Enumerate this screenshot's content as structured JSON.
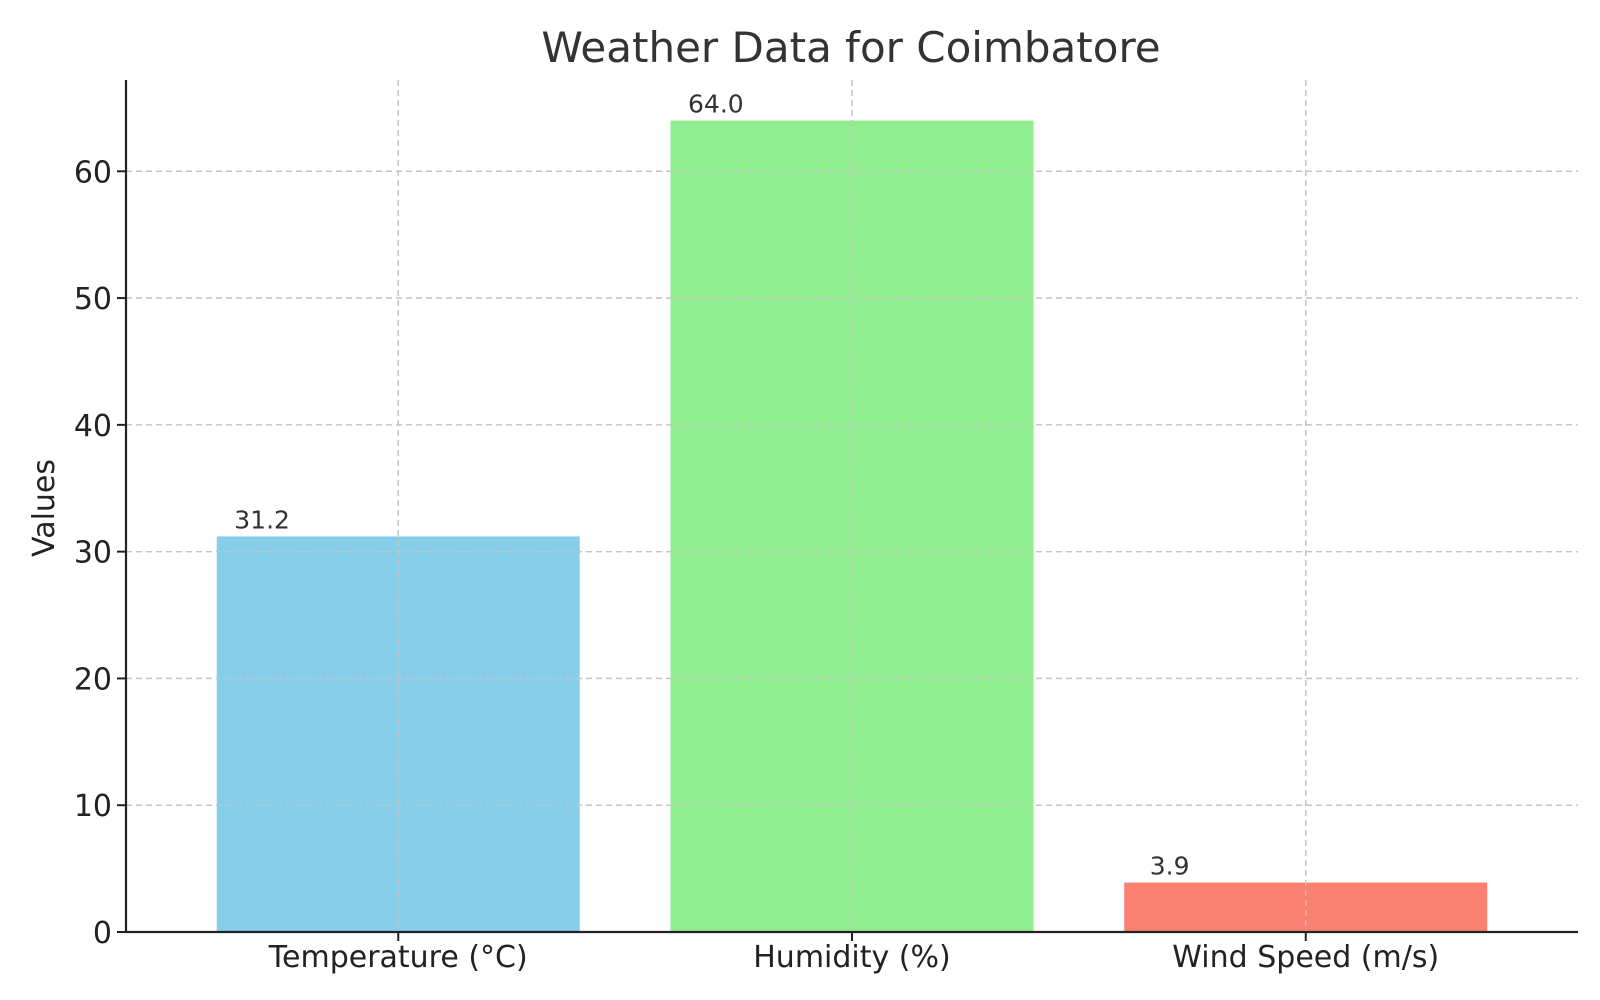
{
  "chart_data": {
    "type": "bar",
    "title": "Weather Data for Coimbatore",
    "xlabel": "",
    "ylabel": "Values",
    "categories": [
      "Temperature (°C)",
      "Humidity (%)",
      "Wind Speed (m/s)"
    ],
    "values": [
      31.2,
      64.0,
      3.9
    ],
    "value_labels": [
      "31.2",
      "64.0",
      "3.9"
    ],
    "colors": [
      "#87CEEB",
      "#90EE90",
      "#FA8072"
    ],
    "ylim": [
      0,
      67.2
    ],
    "yticks": [
      0,
      10,
      20,
      30,
      40,
      50,
      60
    ],
    "grid": true,
    "legend": "none"
  }
}
